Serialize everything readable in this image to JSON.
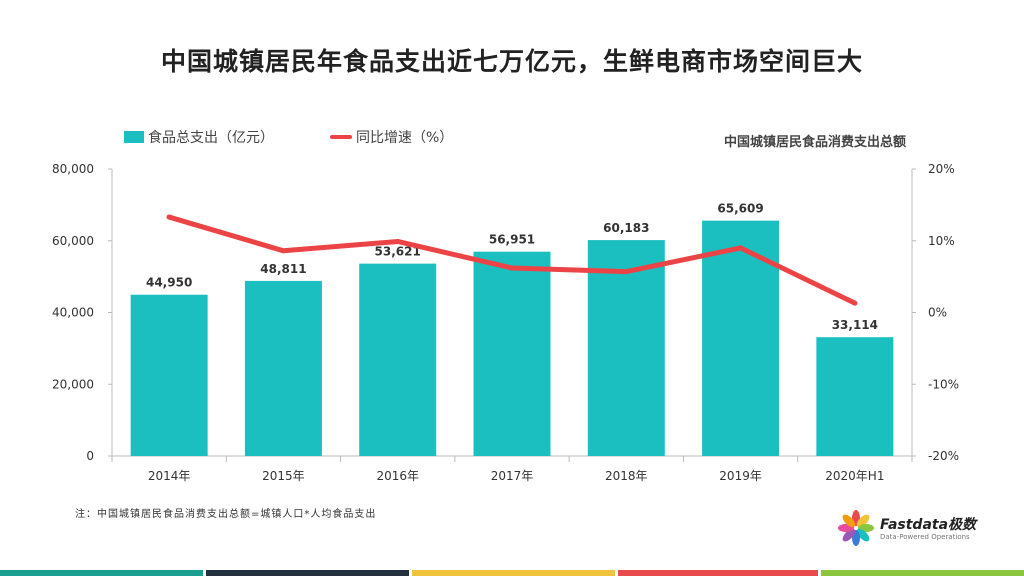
{
  "title": "中国城镇居民年食品支出近七万亿元，生鲜电商市场空间巨大",
  "subtitle": "中国城镇居民食品消费支出总额",
  "note": "注：中国城镇居民食品消费支出总额=城镇人口*人均食品支出",
  "logo": {
    "name": "Fastdata极数",
    "tagline": "Data-Powered Operations"
  },
  "colors": {
    "bar": "#1cbfbf",
    "line": "#ec4446"
  },
  "chart_data": {
    "type": "bar",
    "categories": [
      "2014年",
      "2015年",
      "2016年",
      "2017年",
      "2018年",
      "2019年",
      "2020年H1"
    ],
    "series": [
      {
        "name": "食品总支出（亿元）",
        "type": "bar",
        "axis": "left",
        "values": [
          44950,
          48811,
          53621,
          56951,
          60183,
          65609,
          33114
        ],
        "labels": [
          "44,950",
          "48,811",
          "53,621",
          "56,951",
          "60,183",
          "65,609",
          "33,114"
        ]
      },
      {
        "name": "同比增速（%）",
        "type": "line",
        "axis": "right",
        "values": [
          13.3,
          8.6,
          9.9,
          6.2,
          5.7,
          9.0,
          1.3
        ]
      }
    ],
    "y_left": {
      "ylim": [
        0,
        80000
      ],
      "ticks": [
        "0",
        "20,000",
        "40,000",
        "60,000",
        "80,000"
      ]
    },
    "y_right": {
      "ylim": [
        -20,
        20
      ],
      "ticks": [
        "-20%",
        "-10%",
        "0%",
        "10%",
        "20%"
      ]
    },
    "legend_position": "top-left",
    "grid": false
  },
  "footer_colors": [
    "#1a9e8f",
    "#233040",
    "#f0c43a",
    "#e84b4b",
    "#8cc63f"
  ]
}
